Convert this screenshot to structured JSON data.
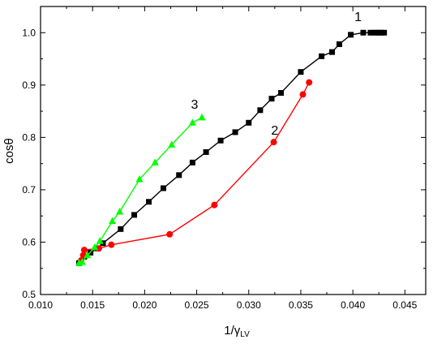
{
  "chart_data": {
    "type": "line",
    "xlabel": "1/γ",
    "xlabel_sub": "LV",
    "ylabel": "cosθ",
    "xlim": [
      0.01,
      0.047
    ],
    "ylim": [
      0.5,
      1.05
    ],
    "xticks": [
      0.01,
      0.015,
      0.02,
      0.025,
      0.03,
      0.035,
      0.04,
      0.045
    ],
    "xtick_labels": [
      "0.010",
      "0.015",
      "0.020",
      "0.025",
      "0.030",
      "0.035",
      "0.040",
      "0.045"
    ],
    "yticks": [
      0.5,
      0.6,
      0.7,
      0.8,
      0.9,
      1.0
    ],
    "ytick_labels": [
      "0.5",
      "0.6",
      "0.7",
      "0.8",
      "0.9",
      "1.0"
    ],
    "grid": false,
    "legend": "none",
    "series": [
      {
        "name": "1",
        "color": "#000000",
        "marker": "square",
        "points": [
          [
            0.0137,
            0.56
          ],
          [
            0.0142,
            0.572
          ],
          [
            0.0148,
            0.58
          ],
          [
            0.0155,
            0.588
          ],
          [
            0.016,
            0.598
          ],
          [
            0.0177,
            0.625
          ],
          [
            0.019,
            0.652
          ],
          [
            0.0204,
            0.677
          ],
          [
            0.0218,
            0.703
          ],
          [
            0.0233,
            0.728
          ],
          [
            0.0246,
            0.752
          ],
          [
            0.0259,
            0.772
          ],
          [
            0.0273,
            0.794
          ],
          [
            0.0287,
            0.81
          ],
          [
            0.03,
            0.828
          ],
          [
            0.0311,
            0.852
          ],
          [
            0.0322,
            0.874
          ],
          [
            0.0331,
            0.885
          ],
          [
            0.035,
            0.925
          ],
          [
            0.037,
            0.955
          ],
          [
            0.038,
            0.963
          ],
          [
            0.0387,
            0.978
          ],
          [
            0.0398,
            0.996
          ],
          [
            0.041,
            1.0
          ],
          [
            0.0417,
            1.0
          ],
          [
            0.0421,
            1.0
          ],
          [
            0.0424,
            1.0
          ],
          [
            0.0427,
            1.0
          ],
          [
            0.043,
            1.0
          ]
        ]
      },
      {
        "name": "2",
        "color": "#ff0000",
        "marker": "circle",
        "points": [
          [
            0.0139,
            0.565
          ],
          [
            0.0141,
            0.575
          ],
          [
            0.0142,
            0.585
          ],
          [
            0.0156,
            0.588
          ],
          [
            0.0168,
            0.595
          ],
          [
            0.0224,
            0.615
          ],
          [
            0.0267,
            0.671
          ],
          [
            0.0324,
            0.791
          ],
          [
            0.0352,
            0.882
          ],
          [
            0.0358,
            0.905
          ]
        ]
      },
      {
        "name": "3",
        "color": "#00ff00",
        "marker": "triangle",
        "points": [
          [
            0.0137,
            0.56
          ],
          [
            0.014,
            0.562
          ],
          [
            0.0145,
            0.575
          ],
          [
            0.0152,
            0.59
          ],
          [
            0.0157,
            0.602
          ],
          [
            0.0169,
            0.64
          ],
          [
            0.0176,
            0.658
          ],
          [
            0.0195,
            0.72
          ],
          [
            0.021,
            0.752
          ],
          [
            0.0226,
            0.786
          ],
          [
            0.0246,
            0.828
          ],
          [
            0.0255,
            0.838
          ]
        ]
      }
    ],
    "annotations": [
      {
        "text": "1",
        "x": 0.0405,
        "y": 1.022
      },
      {
        "text": "2",
        "x": 0.0325,
        "y": 0.805
      },
      {
        "text": "3",
        "x": 0.0248,
        "y": 0.855
      }
    ]
  }
}
